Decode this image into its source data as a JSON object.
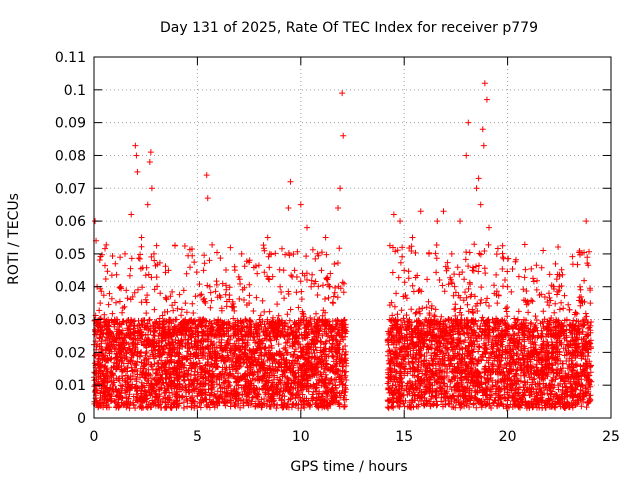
{
  "chart_data": {
    "type": "scatter",
    "title": "Day 131 of 2025, Rate Of TEC Index for receiver p779",
    "xlabel": "GPS time / hours",
    "ylabel": "ROTI / TECUs",
    "xlim": [
      0,
      25
    ],
    "ylim": [
      0,
      0.11
    ],
    "xticks": [
      0,
      5,
      10,
      15,
      20,
      25
    ],
    "xtick_labels": [
      "0",
      "5",
      "10",
      "15",
      "20",
      "25"
    ],
    "yticks": [
      0,
      0.01,
      0.02,
      0.03,
      0.04,
      0.05,
      0.06,
      0.07,
      0.08,
      0.09,
      0.1,
      0.11
    ],
    "ytick_labels": [
      "0",
      "0.01",
      "0.02",
      "0.03",
      "0.04",
      "0.05",
      "0.06",
      "0.07",
      "0.08",
      "0.09",
      "0.1",
      "0.11"
    ],
    "grid": true,
    "marker": "+",
    "color": "#ff0000",
    "data_gap_hours": [
      12.2,
      14.2
    ],
    "series": [
      {
        "name": "ROTI",
        "x": [
          0.05,
          0.1,
          0.15,
          0.2,
          0.3,
          0.5,
          0.7,
          1.0,
          1.3,
          1.5,
          1.8,
          2.0,
          2.05,
          2.1,
          2.3,
          2.6,
          2.7,
          2.75,
          2.8,
          2.9,
          3.2,
          3.6,
          4.0,
          4.4,
          4.8,
          5.3,
          5.45,
          5.5,
          5.6,
          6.0,
          6.5,
          7.0,
          7.5,
          8.0,
          8.4,
          8.5,
          9.0,
          9.4,
          9.5,
          9.7,
          10.0,
          10.3,
          10.5,
          11.0,
          11.2,
          11.4,
          11.8,
          11.9,
          12.0,
          12.05,
          14.3,
          14.5,
          14.8,
          14.9,
          15.0,
          15.4,
          15.8,
          16.2,
          16.6,
          16.9,
          17.3,
          17.7,
          18.0,
          18.1,
          18.3,
          18.5,
          18.6,
          18.7,
          18.8,
          18.85,
          18.9,
          19.0,
          19.1,
          19.5,
          20.0,
          20.5,
          21.0,
          21.5,
          22.0,
          22.5,
          23.0,
          23.5,
          23.8,
          23.85,
          24.0
        ],
        "y": [
          0.06,
          0.054,
          0.04,
          0.028,
          0.035,
          0.03,
          0.022,
          0.03,
          0.04,
          0.05,
          0.062,
          0.083,
          0.08,
          0.075,
          0.055,
          0.065,
          0.078,
          0.081,
          0.07,
          0.05,
          0.038,
          0.045,
          0.03,
          0.028,
          0.032,
          0.045,
          0.074,
          0.067,
          0.04,
          0.03,
          0.025,
          0.043,
          0.035,
          0.03,
          0.055,
          0.05,
          0.04,
          0.064,
          0.072,
          0.045,
          0.065,
          0.058,
          0.04,
          0.045,
          0.055,
          0.04,
          0.064,
          0.07,
          0.099,
          0.086,
          0.03,
          0.062,
          0.06,
          0.052,
          0.045,
          0.055,
          0.063,
          0.05,
          0.06,
          0.063,
          0.05,
          0.06,
          0.08,
          0.09,
          0.045,
          0.07,
          0.073,
          0.065,
          0.088,
          0.083,
          0.102,
          0.097,
          0.058,
          0.035,
          0.04,
          0.03,
          0.035,
          0.025,
          0.038,
          0.04,
          0.033,
          0.04,
          0.06,
          0.049,
          0.035
        ]
      }
    ]
  }
}
